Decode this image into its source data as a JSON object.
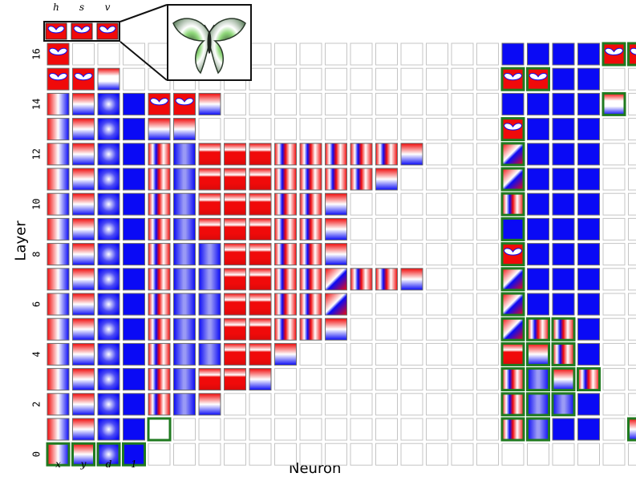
{
  "axes": {
    "x_label": "Neuron",
    "y_label": "Layer"
  },
  "outputs": {
    "labels": [
      "h",
      "s",
      "v"
    ]
  },
  "column_labels": [
    "x",
    "y",
    "d",
    "1"
  ],
  "layers": [
    16,
    15,
    14,
    13,
    12,
    11,
    10,
    9,
    8,
    7,
    6,
    5,
    4,
    3,
    2,
    1,
    0
  ],
  "layer_tick_labels": [
    {
      "layer": 16,
      "text": "16"
    },
    {
      "layer": 14,
      "text": "14"
    },
    {
      "layer": 12,
      "text": "12"
    },
    {
      "layer": 10,
      "text": "10"
    },
    {
      "layer": 8,
      "text": "8"
    },
    {
      "layer": 6,
      "text": "6"
    },
    {
      "layer": 4,
      "text": "4"
    },
    {
      "layer": 2,
      "text": "2"
    },
    {
      "layer": 0,
      "text": "0"
    }
  ],
  "rows": {
    "16": "Sxxxxxxxxxxxxxxxxxbbbbgg",
    "15": "SSOxxxxxxxxxxxxxxxSSbbxx",
    "14": "hyrbSSyxxxxxxxxxxxbbbbOx",
    "13": "hyrbyyxxxxxxxxxxxxsbbbxx",
    "12": "hyrbvuCCCvvvvvyxxxwbbbxx",
    "11": "hyrbvuCCCvvvvyxxxxwbbbxx",
    "10": "hyrbvuCCCvvyxxxxxxvbbbxx",
    "9": "hyrbvuCCCvvyxxxxxxbbbbxx",
    "8": "hyrbvuuCCvvyxxxxxxsbbbxx",
    "7": "hyrbvuuCCvvwvvyxxxwbbbxx",
    "6": "hyrbvuuCCvvwxxxxxxwbbbxx",
    "5": "hyrbvuuCCvvyxxxxxxwvvbxx",
    "4": "hyrbvuuCCyxxxxxxxxCyvbxx",
    "3": "hyrbvuCCyxxxxxxxxxvuyvxx",
    "2": "hyrbvuyxxxxxxxxxxxvuubxx",
    "1": "hyrbWxxxxxxxxxxxxxvubbxy",
    "0": "hyrbxxxxxxxxxxxxxxxxxxxx"
  },
  "highlighted": {
    "16": [
      22,
      23
    ],
    "15": [
      18,
      19
    ],
    "14": [
      22
    ],
    "13": [
      18
    ],
    "12": [
      18
    ],
    "11": [
      18
    ],
    "10": [
      18
    ],
    "9": [
      18
    ],
    "8": [
      18
    ],
    "7": [
      18
    ],
    "6": [
      18
    ],
    "5": [
      18,
      19,
      20
    ],
    "4": [
      18,
      19,
      20
    ],
    "3": [
      18,
      19,
      20,
      21
    ],
    "2": [
      18,
      19,
      20
    ],
    "1": [
      4,
      18,
      19,
      23
    ],
    "0": [
      0,
      1,
      2,
      3
    ]
  },
  "palette": {
    "red": "#f00a0a",
    "blue": "#0a0af5",
    "white": "#ffffff",
    "highlight": "#1f7a1f",
    "butterfly_green": "#8fd87a",
    "butterfly_dark": "#2b3a2b"
  }
}
